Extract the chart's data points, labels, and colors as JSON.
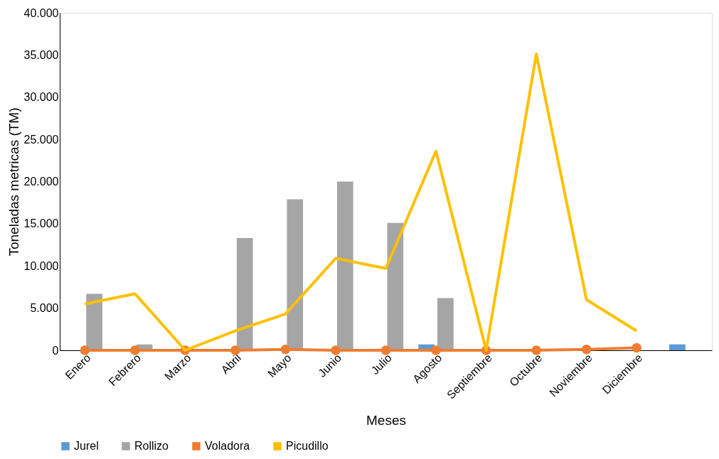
{
  "chart_data": {
    "type": "bar",
    "xlabel": "Meses",
    "ylabel": "Toneladas metricas (TM)",
    "categories": [
      "Enero",
      "Febrero",
      "Marzo",
      "Abril",
      "Mayo",
      "Junio",
      "Julio",
      "Agosto",
      "Septiembre",
      "Octubre",
      "Noviembre",
      "Diciembre",
      null
    ],
    "series": [
      {
        "name": "Jurel",
        "color": "#5b9bd5",
        "values": [
          0,
          0,
          0,
          0,
          0,
          0,
          0,
          700,
          0,
          0,
          0,
          0,
          700
        ]
      },
      {
        "name": "Rollizo",
        "color": "#a5a5a5",
        "values": [
          6700,
          700,
          0,
          13300,
          17900,
          20000,
          15100,
          6200,
          0,
          0,
          0,
          0,
          0
        ]
      },
      {
        "name": "Voladora",
        "type": "line",
        "color": "#ed7d31",
        "marker": "circle",
        "values": [
          0,
          0,
          0,
          0,
          100,
          0,
          0,
          0,
          0,
          0,
          100,
          300,
          null
        ]
      },
      {
        "name": "Picudillo",
        "type": "line",
        "color": "#ffc000",
        "marker": "none",
        "values": [
          5500,
          6700,
          0,
          2300,
          4300,
          10900,
          9700,
          23600,
          0,
          35100,
          6000,
          2300,
          null
        ]
      }
    ],
    "ylim": [
      0,
      40000
    ],
    "yticks": [
      {
        "value": 0,
        "label": "0"
      },
      {
        "value": 5000,
        "label": "5.000"
      },
      {
        "value": 10000,
        "label": "10.000"
      },
      {
        "value": 15000,
        "label": "15.000"
      },
      {
        "value": 20000,
        "label": "20.000"
      },
      {
        "value": 25000,
        "label": "25.000"
      },
      {
        "value": 30000,
        "label": "30.000"
      },
      {
        "value": 35000,
        "label": "35.000"
      },
      {
        "value": 40000,
        "label": "40.000"
      }
    ],
    "grid": false,
    "legend": "bottom"
  }
}
